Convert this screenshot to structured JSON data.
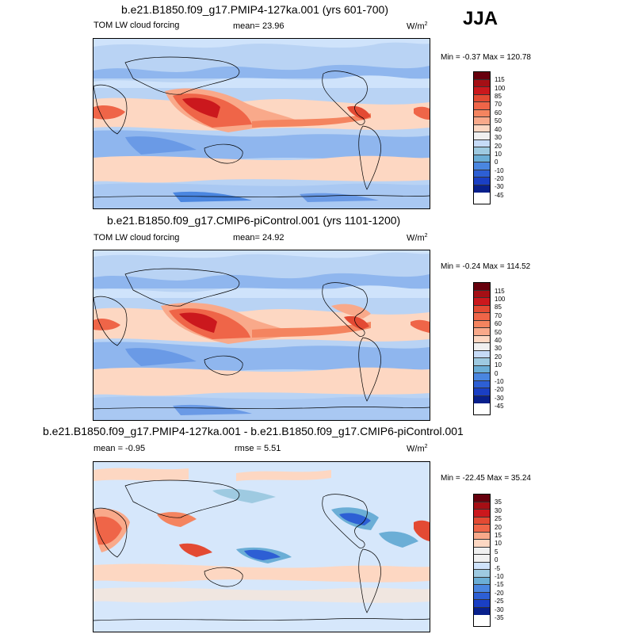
{
  "season": "JJA",
  "panels": [
    {
      "title": "b.e21.B1850.f09_g17.PMIP4-127ka.001 (yrs 601-700)",
      "left_label": "TOM LW cloud forcing",
      "mean_label": "mean=  23.96",
      "units": "W/m",
      "units_sup": "2",
      "minmax": "Min =  -0.37 Max = 120.78",
      "colorbar_labels": [
        "115",
        "100",
        "85",
        "70",
        "60",
        "50",
        "40",
        "30",
        "20",
        "10",
        "0",
        "-10",
        "-20",
        "-30",
        "-45"
      ]
    },
    {
      "title": "b.e21.B1850.f09_g17.CMIP6-piControl.001 (yrs 1101-1200)",
      "left_label": "TOM LW cloud forcing",
      "mean_label": "mean=  24.92",
      "units": "W/m",
      "units_sup": "2",
      "minmax": "Min =  -0.24 Max = 114.52",
      "colorbar_labels": [
        "115",
        "100",
        "85",
        "70",
        "60",
        "50",
        "40",
        "30",
        "20",
        "10",
        "0",
        "-10",
        "-20",
        "-30",
        "-45"
      ]
    },
    {
      "title": "b.e21.B1850.f09_g17.PMIP4-127ka.001 - b.e21.B1850.f09_g17.CMIP6-piControl.001",
      "left_label": "mean =  -0.95",
      "mean_label": "rmse =   5.51",
      "units": "W/m",
      "units_sup": "2",
      "minmax": "Min = -22.45 Max =  35.24",
      "colorbar_labels": [
        "35",
        "30",
        "25",
        "20",
        "15",
        "10",
        "5",
        "0",
        "-5",
        "-10",
        "-15",
        "-20",
        "-25",
        "-30",
        "-35"
      ]
    }
  ],
  "colors": {
    "abs_scale": [
      "#67000d",
      "#a50f15",
      "#cb181d",
      "#e34a33",
      "#ef6548",
      "#f4845f",
      "#f9a98a",
      "#fdd7c2",
      "#f0f0f0",
      "#c6dbf7",
      "#9ecae1",
      "#6baed6",
      "#4a86e0",
      "#2d5fd4",
      "#1a3fc4",
      "#08208c"
    ],
    "diff_scale": [
      "#67000d",
      "#a50f15",
      "#cb181d",
      "#e34a33",
      "#ef6548",
      "#f9a98a",
      "#fdd7c2",
      "#f0f0f0",
      "#f0f0f0",
      "#cfe3fb",
      "#9ecae1",
      "#6baed6",
      "#4a86e0",
      "#2d5fd4",
      "#1a3fc4",
      "#08208c"
    ]
  }
}
